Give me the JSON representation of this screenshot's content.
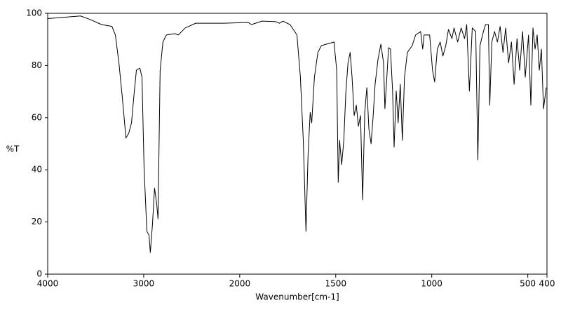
{
  "chart_data": {
    "type": "line",
    "xlabel": "Wavenumber[cm-1]",
    "ylabel": "%T",
    "x": [
      4000,
      3658,
      3549,
      3440,
      3331,
      3295,
      3258,
      3222,
      3185,
      3156,
      3127,
      3098,
      3076,
      3040,
      3018,
      2996,
      2967,
      2945,
      2931,
      2909,
      2887,
      2865,
      2851,
      2829,
      2800,
      2764,
      2676,
      2640,
      2567,
      2458,
      2167,
      1956,
      1938,
      1884,
      1811,
      1793,
      1775,
      1738,
      1702,
      1684,
      1669,
      1655,
      1644,
      1633,
      1625,
      1611,
      1593,
      1575,
      1538,
      1509,
      1495,
      1487,
      1480,
      1469,
      1458,
      1447,
      1436,
      1425,
      1415,
      1404,
      1393,
      1382,
      1371,
      1360,
      1349,
      1338,
      1327,
      1316,
      1305,
      1295,
      1280,
      1265,
      1251,
      1244,
      1236,
      1225,
      1215,
      1204,
      1196,
      1185,
      1175,
      1164,
      1153,
      1142,
      1127,
      1102,
      1084,
      1058,
      1047,
      1040,
      1011,
      996,
      985,
      971,
      956,
      942,
      927,
      913,
      895,
      884,
      865,
      847,
      829,
      818,
      804,
      789,
      771,
      760,
      749,
      731,
      720,
      705,
      698,
      687,
      673,
      658,
      644,
      629,
      615,
      600,
      585,
      571,
      556,
      542,
      527,
      513,
      496,
      484,
      473,
      462,
      451,
      440,
      429,
      418,
      404
    ],
    "values": [
      98,
      99,
      97.5,
      95.7,
      95,
      91.7,
      80.9,
      67.5,
      52.2,
      54,
      58,
      70,
      78.2,
      79,
      75.5,
      40.6,
      16.4,
      15,
      8.3,
      19,
      33,
      27,
      21.2,
      78,
      89,
      91.7,
      92.2,
      91.7,
      94.4,
      96.2,
      96.2,
      96.5,
      95.7,
      97,
      96.8,
      96.2,
      97,
      95.7,
      91.7,
      75.5,
      51.3,
      16.4,
      46,
      62,
      58,
      75.5,
      85,
      87.6,
      88.4,
      89,
      78.2,
      35.2,
      51.3,
      42,
      51.3,
      70.2,
      81,
      85,
      75.5,
      60.8,
      64.8,
      56.7,
      60.8,
      28.5,
      62,
      71.5,
      55.4,
      50,
      60.8,
      72.8,
      82.3,
      88.2,
      81,
      63.4,
      72.8,
      86.8,
      86.3,
      70.2,
      48.7,
      70.2,
      58,
      72.8,
      51.3,
      75.5,
      85,
      87.6,
      91.7,
      93,
      86.3,
      91.7,
      91.7,
      78.2,
      73.7,
      86.3,
      89,
      83.6,
      87.6,
      93.8,
      90.3,
      94.4,
      89,
      94.4,
      90.3,
      95.7,
      70.2,
      94.4,
      93,
      43.8,
      87.6,
      93,
      95.7,
      95.7,
      64.8,
      89,
      93,
      89,
      95,
      85,
      94.4,
      81,
      89,
      72.8,
      90.3,
      78.2,
      93,
      75.5,
      91.7,
      64.8,
      94.4,
      86.3,
      91.7,
      78.2,
      86.3,
      63.4,
      71.5
    ],
    "color": "#000000",
    "xlim": [
      4000,
      2000,
      400
    ],
    "xticks": [
      4000,
      3000,
      2000,
      1500,
      1000,
      500,
      400
    ],
    "ylim": [
      0,
      100
    ],
    "yticks": [
      0,
      20,
      40,
      60,
      80,
      100
    ]
  }
}
